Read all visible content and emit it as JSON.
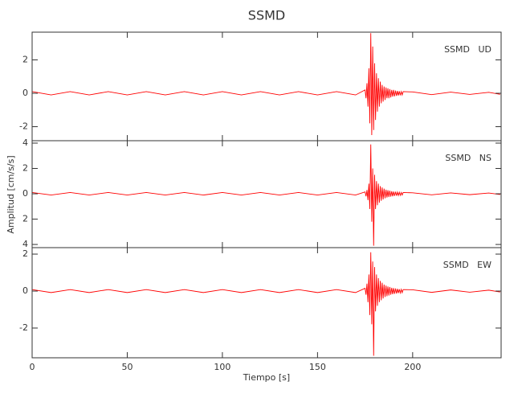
{
  "chart_data": [
    {
      "type": "line",
      "title": "SSMD",
      "annotation": "SSMD   UD",
      "xlim": [
        0,
        246.5
      ],
      "ylim": [
        -2.84,
        3.66
      ],
      "yticks": [
        -2,
        0,
        2
      ],
      "x": [
        0,
        10,
        20,
        30,
        40,
        50,
        60,
        70,
        80,
        90,
        100,
        110,
        120,
        130,
        140,
        150,
        160,
        170,
        175,
        175.5,
        176,
        176.5,
        177,
        177.5,
        178,
        178.5,
        179,
        179.5,
        180,
        180.5,
        181,
        181.5,
        182,
        182.5,
        183,
        183.5,
        184,
        184.5,
        185,
        185.5,
        186,
        186.5,
        187,
        187.5,
        188,
        188.5,
        189,
        189.5,
        190,
        190.5,
        191,
        191.5,
        192,
        192.5,
        193,
        193.5,
        194,
        194.5,
        195,
        200,
        210,
        220,
        230,
        240,
        246
      ],
      "series": [
        {
          "color": "#ff0000",
          "values": [
            0.1,
            -0.1,
            0.1,
            -0.1,
            0.1,
            -0.1,
            0.1,
            -0.1,
            0.1,
            -0.1,
            0.1,
            -0.1,
            0.1,
            -0.1,
            0.1,
            -0.1,
            0.1,
            -0.1,
            0.2,
            -0.3,
            0.6,
            -0.8,
            1.5,
            -1.8,
            3.6,
            -2.5,
            2.8,
            -2.2,
            1.8,
            -1.6,
            1.2,
            -1.1,
            0.9,
            -0.8,
            0.7,
            -0.6,
            0.5,
            -0.5,
            0.4,
            -0.4,
            0.35,
            -0.3,
            0.3,
            -0.3,
            0.25,
            -0.25,
            0.2,
            -0.2,
            0.2,
            -0.18,
            0.16,
            -0.15,
            0.14,
            -0.13,
            0.12,
            -0.12,
            0.1,
            -0.1,
            0.1,
            0.08,
            -0.08,
            0.07,
            -0.07,
            0.06,
            -0.06
          ]
        }
      ]
    },
    {
      "type": "line",
      "ylabel": "Amplitud [cm/s/s]",
      "annotation": "SSMD   NS",
      "xlim": [
        0,
        246.5
      ],
      "ylim": [
        -4.25,
        4.19
      ],
      "yticks": [
        4,
        2,
        0,
        {
          "value": -2,
          "label": "2"
        },
        {
          "value": -4,
          "label": "4"
        }
      ],
      "x": [
        0,
        10,
        20,
        30,
        40,
        50,
        60,
        70,
        80,
        90,
        100,
        110,
        120,
        130,
        140,
        150,
        160,
        170,
        175,
        175.5,
        176,
        176.5,
        177,
        177.5,
        178,
        178.5,
        179,
        179.5,
        180,
        180.5,
        181,
        181.5,
        182,
        182.5,
        183,
        183.5,
        184,
        184.5,
        185,
        185.5,
        186,
        186.5,
        187,
        187.5,
        188,
        188.5,
        189,
        189.5,
        190,
        190.5,
        191,
        191.5,
        192,
        192.5,
        193,
        193.5,
        194,
        194.5,
        195,
        200,
        210,
        220,
        230,
        240,
        246
      ],
      "series": [
        {
          "color": "#ff0000",
          "values": [
            0.1,
            -0.1,
            0.1,
            -0.1,
            0.1,
            -0.1,
            0.1,
            -0.1,
            0.1,
            -0.1,
            0.1,
            -0.1,
            0.1,
            -0.1,
            0.1,
            -0.1,
            0.1,
            -0.1,
            0.15,
            -0.2,
            0.3,
            -0.5,
            0.8,
            -1.2,
            3.9,
            -2.2,
            2.0,
            -4.1,
            1.5,
            -1.2,
            1.0,
            -0.9,
            0.8,
            -0.7,
            0.6,
            -0.55,
            0.5,
            -0.45,
            0.4,
            -0.35,
            0.32,
            -0.3,
            0.28,
            -0.26,
            0.24,
            -0.22,
            0.2,
            -0.2,
            0.18,
            -0.17,
            0.16,
            -0.15,
            0.14,
            -0.13,
            0.12,
            -0.12,
            0.1,
            -0.1,
            0.1,
            0.08,
            -0.08,
            0.07,
            -0.07,
            0.06,
            -0.06
          ]
        }
      ]
    },
    {
      "type": "line",
      "xlabel": "Tiempo [s]",
      "annotation": "SSMD   EW",
      "xlim": [
        0,
        246.5
      ],
      "ylim": [
        -3.61,
        2.35
      ],
      "yticks": [
        2,
        0,
        -2
      ],
      "xticks": [
        0,
        50,
        100,
        150,
        200
      ],
      "x": [
        0,
        10,
        20,
        30,
        40,
        50,
        60,
        70,
        80,
        90,
        100,
        110,
        120,
        130,
        140,
        150,
        160,
        170,
        175,
        175.5,
        176,
        176.5,
        177,
        177.5,
        178,
        178.5,
        179,
        179.5,
        180,
        180.5,
        181,
        181.5,
        182,
        182.5,
        183,
        183.5,
        184,
        184.5,
        185,
        185.5,
        186,
        186.5,
        187,
        187.5,
        188,
        188.5,
        189,
        189.5,
        190,
        190.5,
        191,
        191.5,
        192,
        192.5,
        193,
        193.5,
        194,
        194.5,
        195,
        200,
        210,
        220,
        230,
        240,
        246
      ],
      "series": [
        {
          "color": "#ff0000",
          "values": [
            0.08,
            -0.08,
            0.08,
            -0.08,
            0.08,
            -0.08,
            0.08,
            -0.08,
            0.08,
            -0.08,
            0.08,
            -0.08,
            0.08,
            -0.08,
            0.08,
            -0.08,
            0.08,
            -0.08,
            0.15,
            -0.2,
            0.4,
            -0.6,
            0.9,
            -1.3,
            2.1,
            -1.8,
            1.6,
            -3.5,
            1.3,
            -1.1,
            0.9,
            -0.8,
            0.7,
            -0.6,
            0.55,
            -0.5,
            0.45,
            -0.4,
            0.35,
            -0.32,
            0.3,
            -0.28,
            0.25,
            -0.24,
            0.22,
            -0.2,
            0.18,
            -0.17,
            0.16,
            -0.15,
            0.14,
            -0.13,
            0.12,
            -0.11,
            0.1,
            -0.1,
            0.09,
            -0.09,
            0.08,
            0.07,
            -0.07,
            0.06,
            -0.06,
            0.05,
            -0.05
          ]
        }
      ]
    }
  ]
}
